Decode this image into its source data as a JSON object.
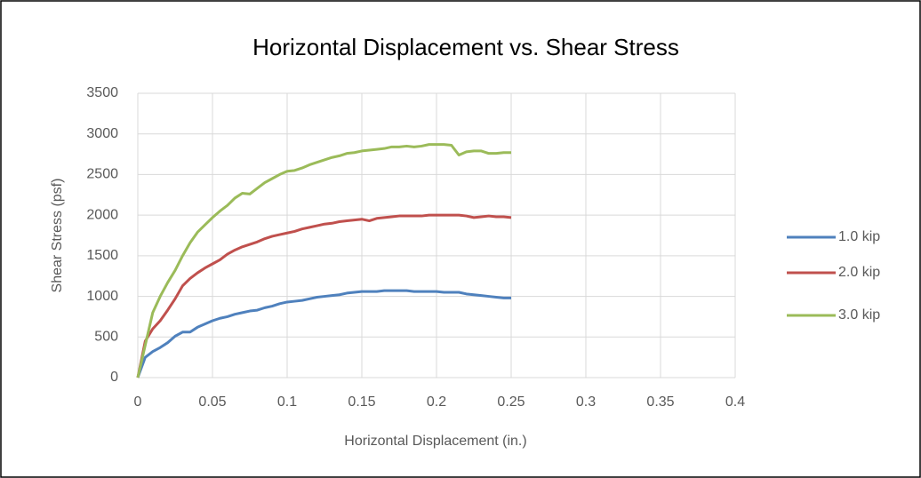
{
  "chart_data": {
    "type": "line",
    "title": "Horizontal Displacement vs. Shear Stress",
    "x_label": "Horizontal Displacement (in.)",
    "y_label": "Shear Stress (psf)",
    "x": [
      0,
      0.005,
      0.01,
      0.015,
      0.02,
      0.025,
      0.03,
      0.035,
      0.04,
      0.045,
      0.05,
      0.055,
      0.06,
      0.065,
      0.07,
      0.075,
      0.08,
      0.085,
      0.09,
      0.095,
      0.1,
      0.105,
      0.11,
      0.115,
      0.12,
      0.125,
      0.13,
      0.135,
      0.14,
      0.145,
      0.15,
      0.155,
      0.16,
      0.165,
      0.17,
      0.175,
      0.18,
      0.185,
      0.19,
      0.195,
      0.2,
      0.205,
      0.21,
      0.215,
      0.22,
      0.225,
      0.23,
      0.235,
      0.24,
      0.245,
      0.25
    ],
    "series": [
      {
        "name": "1.0 kip",
        "color": "#4f81bd",
        "values": [
          0,
          250,
          320,
          370,
          430,
          510,
          560,
          560,
          620,
          660,
          700,
          730,
          750,
          780,
          800,
          820,
          830,
          860,
          880,
          910,
          930,
          940,
          950,
          970,
          990,
          1000,
          1010,
          1020,
          1040,
          1050,
          1060,
          1060,
          1060,
          1070,
          1070,
          1070,
          1070,
          1060,
          1060,
          1060,
          1060,
          1050,
          1050,
          1050,
          1030,
          1020,
          1010,
          1000,
          990,
          980,
          980
        ]
      },
      {
        "name": "2.0 kip",
        "color": "#c0504d",
        "values": [
          0,
          450,
          600,
          700,
          830,
          970,
          1130,
          1220,
          1290,
          1350,
          1400,
          1450,
          1520,
          1570,
          1610,
          1640,
          1670,
          1710,
          1740,
          1760,
          1780,
          1800,
          1830,
          1850,
          1870,
          1890,
          1900,
          1920,
          1930,
          1940,
          1950,
          1930,
          1960,
          1970,
          1980,
          1990,
          1990,
          1990,
          1990,
          2000,
          2000,
          2000,
          2000,
          2000,
          1990,
          1970,
          1980,
          1990,
          1980,
          1980,
          1970
        ]
      },
      {
        "name": "3.0 kip",
        "color": "#9bbb59",
        "values": [
          0,
          400,
          800,
          1000,
          1170,
          1320,
          1500,
          1660,
          1790,
          1880,
          1970,
          2050,
          2120,
          2210,
          2270,
          2260,
          2330,
          2400,
          2450,
          2500,
          2540,
          2550,
          2580,
          2620,
          2650,
          2680,
          2710,
          2730,
          2760,
          2770,
          2790,
          2800,
          2810,
          2820,
          2840,
          2840,
          2850,
          2840,
          2850,
          2870,
          2870,
          2870,
          2860,
          2740,
          2780,
          2790,
          2790,
          2760,
          2760,
          2770,
          2770
        ]
      }
    ],
    "xlim": [
      0,
      0.4
    ],
    "xticks": [
      0,
      0.05,
      0.1,
      0.15,
      0.2,
      0.25,
      0.3,
      0.35,
      0.4
    ],
    "ylim": [
      0,
      3500
    ],
    "yticks": [
      0,
      500,
      1000,
      1500,
      2000,
      2500,
      3000,
      3500
    ],
    "grid": true,
    "legend": "right"
  }
}
